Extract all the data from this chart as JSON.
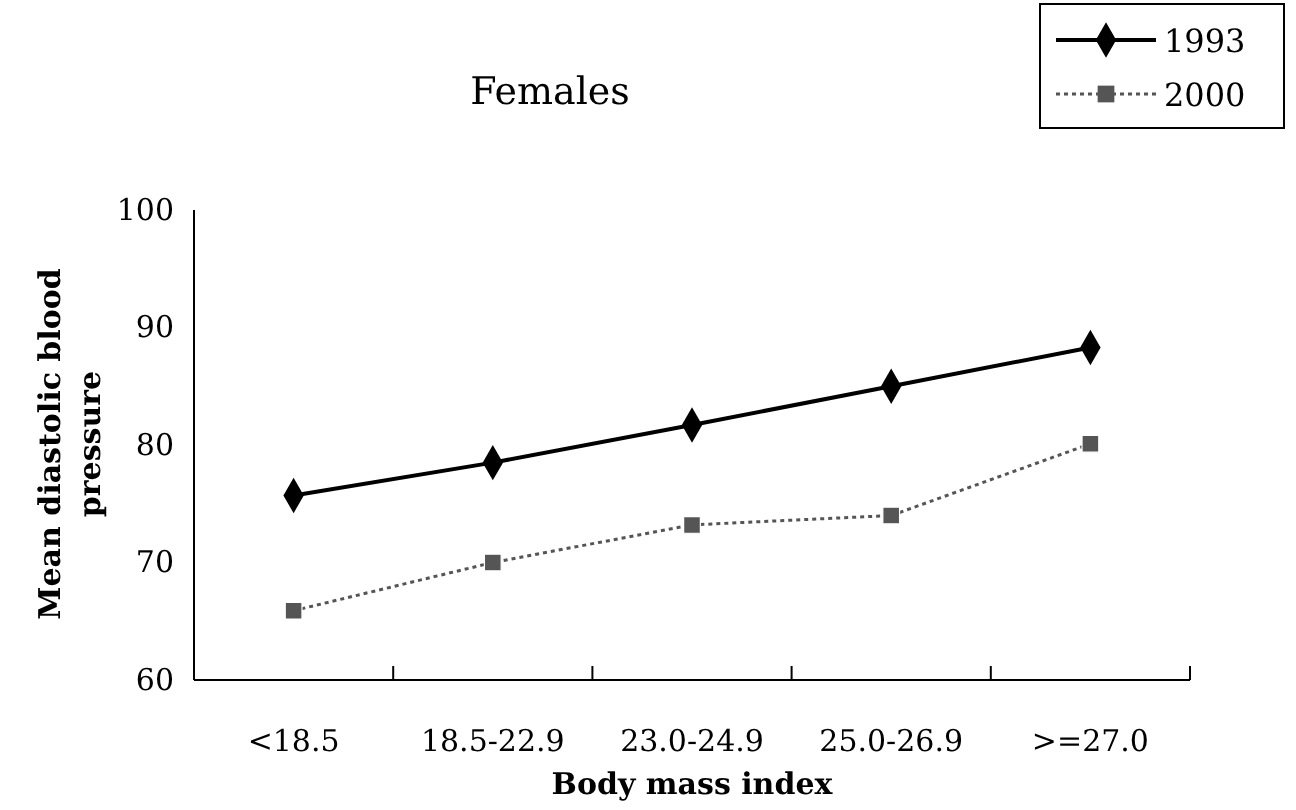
{
  "chart_data": {
    "type": "line",
    "title": "Females",
    "xlabel": "Body mass index",
    "ylabel": "Mean diastolic blood pressure",
    "categories": [
      "<18.5",
      "18.5-22.9",
      "23.0-24.9",
      "25.0-26.9",
      ">=27.0"
    ],
    "series": [
      {
        "name": "1993",
        "color": "#000000",
        "marker": "diamond",
        "line_style": "solid",
        "values": [
          75.7,
          78.5,
          81.7,
          85.0,
          88.3
        ]
      },
      {
        "name": "2000",
        "color": "#555555",
        "marker": "square",
        "line_style": "dotted",
        "values": [
          65.9,
          70.0,
          73.2,
          74.0,
          80.1
        ]
      }
    ],
    "ylim": [
      60,
      100
    ],
    "yticks": [
      60,
      70,
      80,
      90,
      100
    ],
    "grid": false,
    "legend": "top right"
  }
}
